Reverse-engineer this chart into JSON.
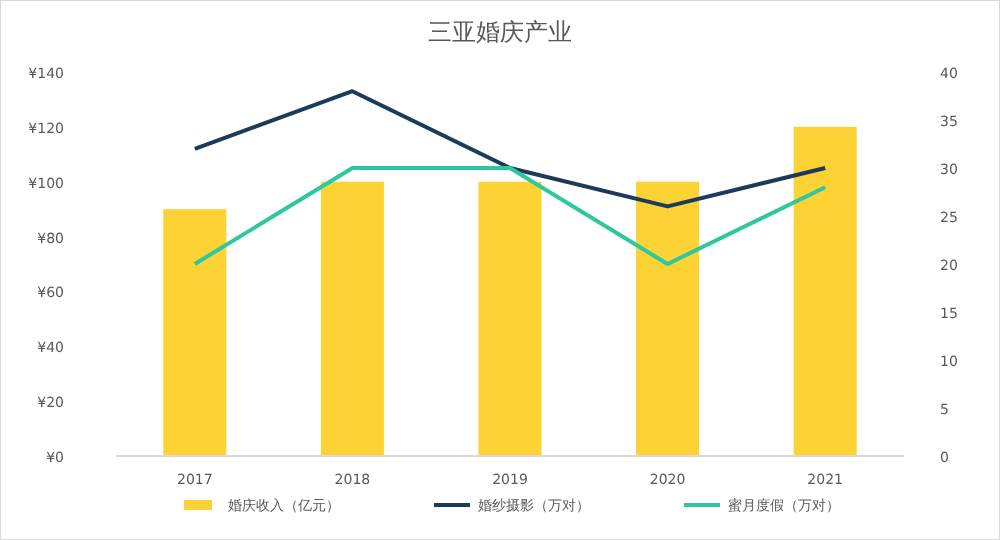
{
  "chart_data": {
    "type": "bar",
    "title": "三亚婚庆产业",
    "categories": [
      "2017",
      "2018",
      "2019",
      "2020",
      "2021"
    ],
    "series": [
      {
        "name": "婚庆收入（亿元）",
        "color": "#fdd235",
        "values": [
          90,
          100,
          100,
          100,
          120
        ]
      },
      {
        "name": "婚纱摄影（万对）",
        "type": "line",
        "axis": "y2",
        "color": "#1b3a5c",
        "values": [
          32,
          38,
          30,
          26,
          30
        ]
      },
      {
        "name": "蜜月度假（万对）",
        "type": "line",
        "axis": "y2",
        "color": "#2fc79e",
        "values": [
          20,
          30,
          30,
          20,
          28
        ]
      }
    ],
    "ylim": [
      0,
      140
    ],
    "yticks": [
      {
        "value": 0,
        "label": "¥0"
      },
      {
        "value": 20,
        "label": "¥20"
      },
      {
        "value": 40,
        "label": "¥40"
      },
      {
        "value": 60,
        "label": "¥60"
      },
      {
        "value": 80,
        "label": "¥80"
      },
      {
        "value": 100,
        "label": "¥100"
      },
      {
        "value": 120,
        "label": "¥120"
      },
      {
        "value": 140,
        "label": "¥140"
      }
    ],
    "y2lim": [
      0,
      40
    ],
    "y2ticks": [
      0,
      5,
      10,
      15,
      20,
      25,
      30,
      35,
      40
    ],
    "legend": "bottom",
    "marker": "none",
    "line_style": "solid"
  }
}
